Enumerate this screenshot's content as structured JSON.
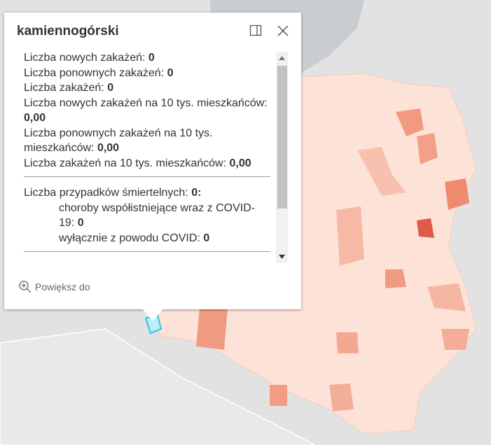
{
  "popup": {
    "title": "kamiennogórski",
    "section1": [
      {
        "label": "Liczba nowych zakażeń:",
        "value": "0"
      },
      {
        "label": "Liczba ponownych zakażeń:",
        "value": "0"
      },
      {
        "label": "Liczba zakażeń:",
        "value": "0"
      },
      {
        "label": "Liczba nowych zakażeń na 10 tys. mieszkańców:",
        "value": "0,00"
      },
      {
        "label": "Liczba ponownych zakażeń na 10 tys. mieszkańców:",
        "value": "0,00"
      },
      {
        "label": "Liczba zakażeń na 10 tys. mieszkańców:",
        "value": "0,00"
      }
    ],
    "deaths": {
      "label": "Liczba przypadków śmiertelnych:",
      "value": "0:"
    },
    "deaths_detail": [
      {
        "label": "choroby współistniejące wraz z COVID-19:",
        "value": "0"
      },
      {
        "label": "wyłącznie z powodu COVID:",
        "value": "0"
      }
    ],
    "zoom": "Powiększ do"
  }
}
